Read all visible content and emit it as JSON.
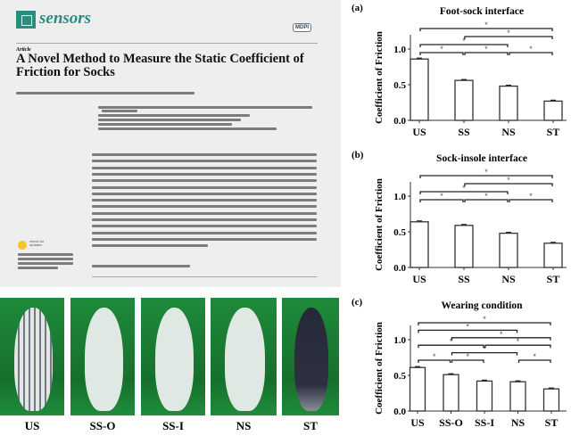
{
  "paper": {
    "journal": "sensors",
    "publisher": "MDPI",
    "article_type": "Article",
    "title": "A Novel Method to Measure the Static Coefficient of Friction for Socks",
    "check_updates": "check for updates"
  },
  "photos": [
    {
      "label": "US",
      "style": "checker"
    },
    {
      "label": "SS-O",
      "style": "light"
    },
    {
      "label": "SS-I",
      "style": "light"
    },
    {
      "label": "NS",
      "style": "light"
    },
    {
      "label": "ST",
      "style": "dark"
    }
  ],
  "colors": {
    "journal": "#2b8c7f",
    "photo_background": "#1e8a3a",
    "bar_fill": "#ffffff",
    "bar_edge": "#333333"
  },
  "chart_data": [
    {
      "type": "bar",
      "panel": "(a)",
      "title": "Foot-sock interface",
      "ylabel": "Coefficient of Friction",
      "ylim": [
        0,
        1.2
      ],
      "yticks": [
        "0.0",
        "0.5",
        "1.0"
      ],
      "categories": [
        "US",
        "SS",
        "NS",
        "ST"
      ],
      "values": [
        0.86,
        0.56,
        0.48,
        0.27
      ],
      "significance": [
        [
          "US",
          "SS"
        ],
        [
          "SS",
          "NS"
        ],
        [
          "NS",
          "ST"
        ],
        [
          "US",
          "NS"
        ],
        [
          "SS",
          "ST"
        ],
        [
          "US",
          "ST"
        ]
      ],
      "sig_mark": "*"
    },
    {
      "type": "bar",
      "panel": "(b)",
      "title": "Sock-insole interface",
      "ylabel": "Coefficient of Friction",
      "ylim": [
        0,
        1.2
      ],
      "yticks": [
        "0.0",
        "0.5",
        "1.0"
      ],
      "categories": [
        "US",
        "SS",
        "NS",
        "ST"
      ],
      "values": [
        0.64,
        0.59,
        0.48,
        0.34
      ],
      "significance": [
        [
          "US",
          "SS"
        ],
        [
          "SS",
          "NS"
        ],
        [
          "NS",
          "ST"
        ],
        [
          "US",
          "NS"
        ],
        [
          "SS",
          "ST"
        ],
        [
          "US",
          "ST"
        ]
      ],
      "sig_mark": "*"
    },
    {
      "type": "bar",
      "panel": "(c)",
      "title": "Wearing condition",
      "ylabel": "Coefficient of Friction",
      "ylim": [
        0,
        1.2
      ],
      "yticks": [
        "0.0",
        "0.5",
        "1.0"
      ],
      "categories": [
        "US",
        "SS-O",
        "SS-I",
        "NS",
        "ST"
      ],
      "values": [
        0.61,
        0.51,
        0.42,
        0.41,
        0.31
      ],
      "significance": [
        [
          "US",
          "SS-O"
        ],
        [
          "SS-O",
          "SS-I"
        ],
        [
          "NS",
          "ST"
        ],
        [
          "SS-O",
          "NS"
        ],
        [
          "US",
          "SS-I"
        ],
        [
          "SS-I",
          "ST"
        ],
        [
          "SS-O",
          "ST"
        ],
        [
          "US",
          "NS"
        ],
        [
          "US",
          "ST"
        ]
      ],
      "sig_mark": "*"
    }
  ]
}
